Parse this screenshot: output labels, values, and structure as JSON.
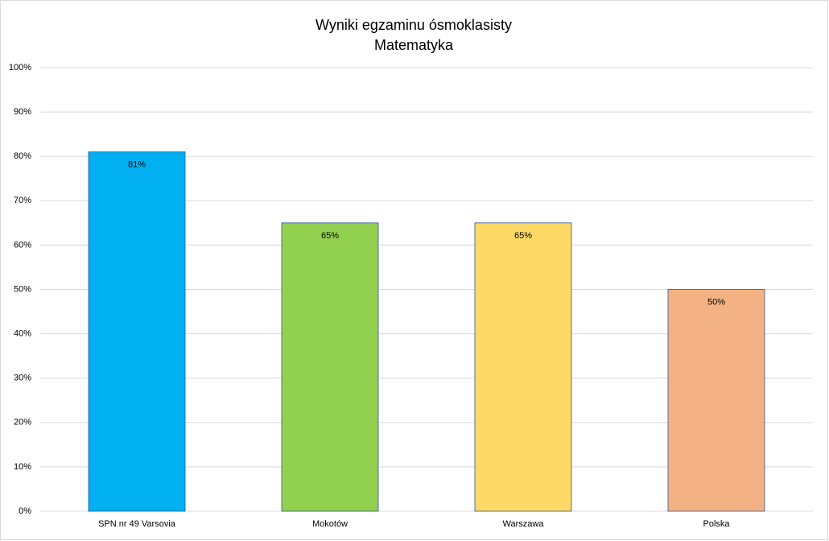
{
  "chart_data": {
    "type": "bar",
    "title": "Wyniki egzaminu ósmoklasisty",
    "subtitle": "Matematyka",
    "categories": [
      "SPN nr 49 Varsovia",
      "Mokotów",
      "Warszawa",
      "Polska"
    ],
    "values": [
      81,
      65,
      65,
      50
    ],
    "value_labels": [
      "81%",
      "65%",
      "65%",
      "50%"
    ],
    "colors": [
      "#00b0f0",
      "#92d050",
      "#ffd966",
      "#f4b183"
    ],
    "ylim": [
      0,
      100
    ],
    "yticks": [
      {
        "value": 0,
        "label": "0%"
      },
      {
        "value": 10,
        "label": "10%"
      },
      {
        "value": 20,
        "label": "20%"
      },
      {
        "value": 30,
        "label": "30%"
      },
      {
        "value": 40,
        "label": "40%"
      },
      {
        "value": 50,
        "label": "50%"
      },
      {
        "value": 60,
        "label": "60%"
      },
      {
        "value": 70,
        "label": "70%"
      },
      {
        "value": 80,
        "label": "80%"
      },
      {
        "value": 90,
        "label": "90%"
      },
      {
        "value": 100,
        "label": "100%"
      }
    ],
    "grid": true
  }
}
